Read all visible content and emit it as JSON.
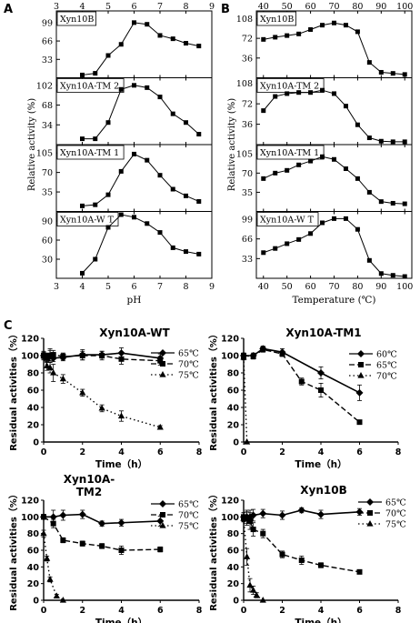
{
  "figure": {
    "panel_letters": [
      "A",
      "B",
      "C"
    ]
  },
  "chart_data": [
    {
      "type": "line",
      "panel_letter": "A",
      "xlabel": "pH",
      "ylabel": "Relative activity (%)",
      "x_ticks": [
        3,
        4,
        5,
        6,
        7,
        8,
        9
      ],
      "xlim": [
        3,
        9
      ],
      "subplots": [
        {
          "label": "Xyn10B",
          "y_ticks": [
            33,
            66,
            99
          ],
          "ylim": [
            0,
            120
          ],
          "series": [
            {
              "x": [
                4,
                4.5,
                5,
                5.5,
                6,
                6.5,
                7,
                7.5,
                8,
                8.5
              ],
              "y": [
                5,
                8,
                40,
                60,
                99,
                96,
                76,
                70,
                62,
                57
              ]
            }
          ]
        },
        {
          "label": "Xyn10A-TM 2",
          "y_ticks": [
            34,
            68,
            102
          ],
          "ylim": [
            0,
            115
          ],
          "series": [
            {
              "x": [
                4,
                4.5,
                5,
                5.5,
                6,
                6.5,
                7,
                7.5,
                8,
                8.5
              ],
              "y": [
                10,
                10,
                38,
                95,
                102,
                98,
                82,
                53,
                38,
                18
              ]
            }
          ]
        },
        {
          "label": "Xyn10A-TM 1",
          "y_ticks": [
            35,
            70,
            105
          ],
          "ylim": [
            0,
            120
          ],
          "series": [
            {
              "x": [
                4,
                4.5,
                5,
                5.5,
                6,
                6.5,
                7,
                7.5,
                8,
                8.5
              ],
              "y": [
                10,
                12,
                30,
                72,
                103,
                92,
                65,
                40,
                28,
                18
              ]
            }
          ]
        },
        {
          "label": "Xyn10A-W T",
          "y_ticks": [
            30,
            60,
            90
          ],
          "ylim": [
            0,
            105
          ],
          "series": [
            {
              "x": [
                4,
                4.5,
                5,
                5.5,
                6,
                6.5,
                7,
                7.5,
                8,
                8.5
              ],
              "y": [
                8,
                30,
                80,
                100,
                96,
                86,
                72,
                48,
                42,
                38
              ]
            }
          ]
        }
      ]
    },
    {
      "type": "line",
      "panel_letter": "B",
      "xlabel": "Temperature (℃)",
      "ylabel": "Relative activity (%)",
      "x_ticks": [
        40,
        50,
        60,
        70,
        80,
        90,
        100
      ],
      "xlim": [
        37,
        103
      ],
      "subplots": [
        {
          "label": "Xyn10B",
          "y_ticks": [
            36,
            72,
            108
          ],
          "ylim": [
            0,
            122
          ],
          "series": [
            {
              "x": [
                40,
                45,
                50,
                55,
                60,
                65,
                70,
                75,
                80,
                85,
                90,
                95,
                100
              ],
              "y": [
                70,
                74,
                77,
                80,
                88,
                96,
                100,
                96,
                84,
                28,
                10,
                8,
                6
              ]
            }
          ]
        },
        {
          "label": "Xyn10A-TM 2",
          "y_ticks": [
            36,
            72,
            108
          ],
          "ylim": [
            0,
            118
          ],
          "series": [
            {
              "x": [
                40,
                45,
                50,
                55,
                60,
                65,
                70,
                75,
                80,
                85,
                90,
                95,
                100
              ],
              "y": [
                60,
                85,
                90,
                92,
                92,
                96,
                90,
                68,
                35,
                12,
                6,
                5,
                5
              ]
            }
          ]
        },
        {
          "label": "Xyn10A-TM 1",
          "y_ticks": [
            35,
            70,
            105
          ],
          "ylim": [
            0,
            122
          ],
          "series": [
            {
              "x": [
                40,
                45,
                50,
                55,
                60,
                65,
                70,
                75,
                80,
                85,
                90,
                95,
                100
              ],
              "y": [
                60,
                70,
                75,
                85,
                92,
                100,
                95,
                78,
                60,
                35,
                18,
                15,
                14
              ]
            }
          ]
        },
        {
          "label": "Xyn10A-W T",
          "y_ticks": [
            33,
            66,
            99
          ],
          "ylim": [
            0,
            112
          ],
          "series": [
            {
              "x": [
                40,
                45,
                50,
                55,
                60,
                65,
                70,
                75,
                80,
                85,
                90,
                95,
                100
              ],
              "y": [
                43,
                50,
                58,
                65,
                75,
                93,
                100,
                100,
                82,
                30,
                8,
                5,
                3
              ]
            }
          ]
        }
      ]
    },
    {
      "type": "line",
      "panel_letter": "C",
      "title": "Xyn10A-WT",
      "xlabel": "Time（h）",
      "ylabel": "Residual activities（%）",
      "xlim": [
        0,
        8
      ],
      "ylim": [
        0,
        120
      ],
      "x_ticks": [
        0,
        2,
        4,
        6,
        8
      ],
      "y_ticks": [
        0,
        20,
        40,
        60,
        80,
        100,
        120
      ],
      "legend_position": "top-right",
      "series": [
        {
          "name": "65℃",
          "x": [
            0,
            0.17,
            0.33,
            0.5,
            1,
            2,
            3,
            4,
            6
          ],
          "y": [
            100,
            98,
            100,
            97,
            98,
            101,
            101,
            103,
            97
          ],
          "err": [
            5,
            5,
            6,
            4,
            4,
            6,
            4,
            6,
            5
          ]
        },
        {
          "name": "70℃",
          "x": [
            0,
            0.17,
            0.33,
            0.5,
            1,
            2,
            3,
            4,
            6
          ],
          "y": [
            100,
            97,
            100,
            101,
            99,
            100,
            100,
            96,
            94
          ],
          "err": [
            4,
            5,
            8,
            5,
            4,
            5,
            5,
            6,
            5
          ]
        },
        {
          "name": "75℃",
          "x": [
            0,
            0.17,
            0.33,
            0.5,
            1,
            2,
            3,
            4,
            6
          ],
          "y": [
            100,
            88,
            86,
            80,
            73,
            57,
            39,
            30,
            17
          ],
          "err": [
            3,
            5,
            6,
            10,
            5,
            4,
            4,
            6,
            2
          ]
        }
      ]
    },
    {
      "type": "line",
      "title": "Xyn10A-TM1",
      "xlabel": "Time（h）",
      "ylabel": "Residual activities（%）",
      "xlim": [
        0,
        8
      ],
      "ylim": [
        0,
        120
      ],
      "x_ticks": [
        0,
        2,
        4,
        6,
        8
      ],
      "y_ticks": [
        0,
        20,
        40,
        60,
        80,
        100,
        120
      ],
      "legend_position": "top-right",
      "series": [
        {
          "name": "60℃",
          "x": [
            0,
            0.5,
            1,
            2,
            4,
            6
          ],
          "y": [
            100,
            100,
            108,
            104,
            80,
            57
          ],
          "err": [
            3,
            3,
            3,
            4,
            7,
            9
          ]
        },
        {
          "name": "65℃",
          "x": [
            0,
            0.5,
            1,
            2,
            3,
            4,
            6
          ],
          "y": [
            100,
            99,
            107,
            102,
            70,
            60,
            23
          ],
          "err": [
            3,
            3,
            3,
            3,
            4,
            8,
            2
          ]
        },
        {
          "name": "70℃",
          "x": [
            0,
            0.17
          ],
          "y": [
            98,
            0
          ],
          "err": [
            3,
            0
          ]
        }
      ]
    },
    {
      "type": "line",
      "title": "Xyn10A-\nTM2",
      "xlabel": "Time（h）",
      "ylabel": "Residual activities（%）",
      "xlim": [
        0,
        8
      ],
      "ylim": [
        0,
        120
      ],
      "x_ticks": [
        0,
        2,
        4,
        6,
        8
      ],
      "y_ticks": [
        0,
        20,
        40,
        60,
        80,
        100,
        120
      ],
      "legend_position": "top-right",
      "series": [
        {
          "name": "65℃",
          "x": [
            0,
            0.5,
            1,
            2,
            3,
            4,
            6
          ],
          "y": [
            100,
            100,
            102,
            103,
            92,
            93,
            95
          ],
          "err": [
            3,
            8,
            6,
            5,
            3,
            4,
            6
          ]
        },
        {
          "name": "70℃",
          "x": [
            0,
            0.5,
            1,
            2,
            3,
            4,
            6
          ],
          "y": [
            100,
            92,
            72,
            68,
            65,
            60,
            61
          ],
          "err": [
            3,
            5,
            3,
            3,
            3,
            5,
            3
          ]
        },
        {
          "name": "75℃",
          "x": [
            0,
            0.17,
            0.33,
            0.67,
            1
          ],
          "y": [
            80,
            50,
            25,
            5,
            0
          ],
          "err": [
            4,
            3,
            3,
            2,
            0
          ]
        }
      ]
    },
    {
      "type": "line",
      "title": "Xyn10B",
      "xlabel": "Time（h）",
      "ylabel": "Residual activities（%）",
      "xlim": [
        0,
        8
      ],
      "ylim": [
        0,
        120
      ],
      "x_ticks": [
        0,
        2,
        4,
        6,
        8
      ],
      "y_ticks": [
        0,
        20,
        40,
        60,
        80,
        100,
        120
      ],
      "legend_position": "top-right",
      "series": [
        {
          "name": "65℃",
          "x": [
            0,
            0.17,
            0.33,
            0.5,
            1,
            2,
            3,
            4,
            6
          ],
          "y": [
            100,
            100,
            100,
            102,
            104,
            102,
            108,
            103,
            106
          ],
          "err": [
            5,
            8,
            8,
            7,
            5,
            5,
            3,
            5,
            4
          ]
        },
        {
          "name": "70℃",
          "x": [
            0,
            0.17,
            0.33,
            0.5,
            1,
            2,
            3,
            4,
            6
          ],
          "y": [
            100,
            98,
            95,
            85,
            80,
            55,
            48,
            42,
            34
          ],
          "err": [
            5,
            8,
            10,
            8,
            5,
            4,
            5,
            3,
            2
          ]
        },
        {
          "name": "75℃",
          "x": [
            0,
            0.17,
            0.33,
            0.5,
            0.67,
            1
          ],
          "y": [
            98,
            52,
            18,
            12,
            6,
            0
          ],
          "err": [
            4,
            10,
            8,
            5,
            3,
            0
          ]
        }
      ]
    }
  ]
}
